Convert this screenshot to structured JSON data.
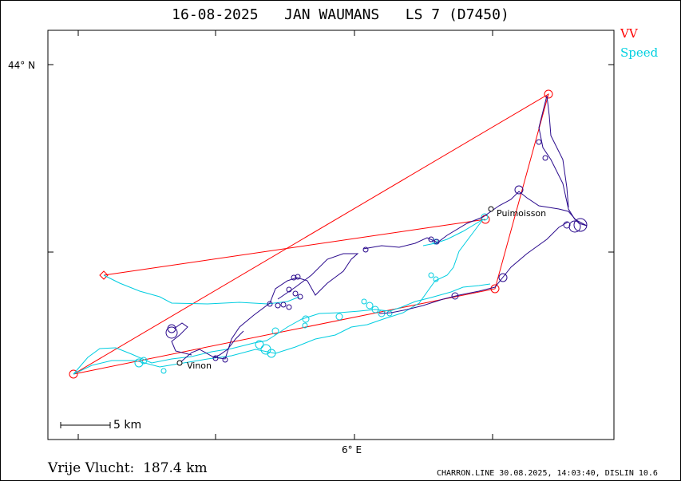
{
  "title": "16-08-2025   JAN WAUMANS   LS 7 (D7450)",
  "legend": {
    "vv_label": "VV",
    "speed_label": "Speed",
    "colors": {
      "vv": "#ff0000",
      "speed": "#00d0e0",
      "track": "#2a0a8c"
    }
  },
  "axes": {
    "lat_tick_label": "44° N",
    "lon_tick_label": "6° E"
  },
  "places": [
    {
      "name": "Puimoisson"
    },
    {
      "name": "Vinon"
    }
  ],
  "scale_bar": {
    "label": "5 km"
  },
  "distance_text": "Vrije Vlucht:  187.4 km",
  "footer": "CHARRON.LINE 30.08.2025, 14:03:40, DISLIN 10.6"
}
